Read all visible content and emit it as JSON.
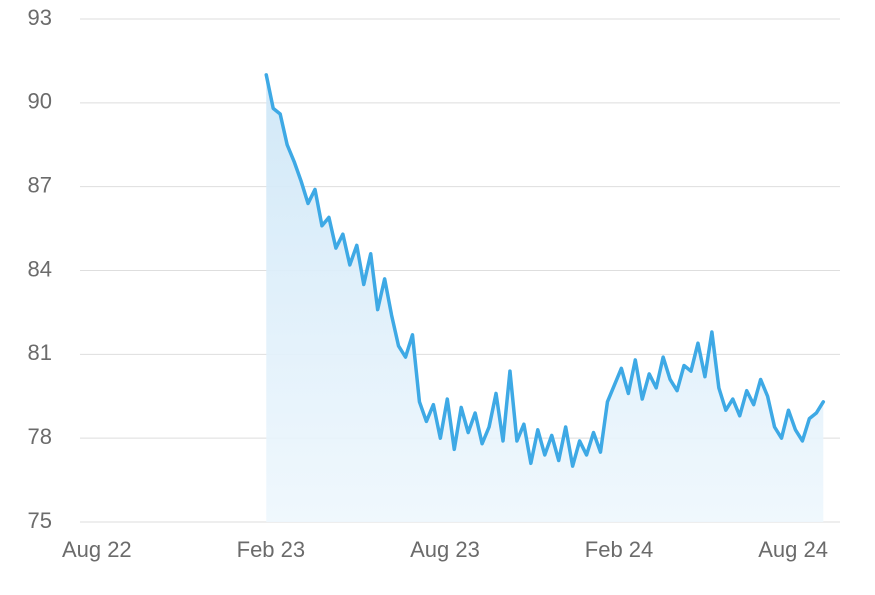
{
  "chart_data": {
    "type": "line",
    "color": "#3ea9e5",
    "grid": true,
    "area": true,
    "xlim": [
      2022.535,
      2024.718
    ],
    "ylim": [
      75,
      93
    ],
    "yticks": [
      75,
      78,
      81,
      84,
      87,
      90,
      93
    ],
    "xticks": [
      {
        "value": 2022.5833,
        "label": "Aug 22"
      },
      {
        "value": 2023.0833,
        "label": "Feb 23"
      },
      {
        "value": 2023.5833,
        "label": "Aug 23"
      },
      {
        "value": 2024.0833,
        "label": "Feb 24"
      },
      {
        "value": 2024.5833,
        "label": "Aug 24"
      }
    ],
    "x": [
      2023.07,
      2023.09,
      2023.11,
      2023.13,
      2023.15,
      2023.17,
      2023.19,
      2023.21,
      2023.23,
      2023.25,
      2023.27,
      2023.29,
      2023.31,
      2023.33,
      2023.35,
      2023.37,
      2023.39,
      2023.41,
      2023.43,
      2023.45,
      2023.47,
      2023.49,
      2023.51,
      2023.53,
      2023.55,
      2023.57,
      2023.59,
      2023.61,
      2023.63,
      2023.65,
      2023.67,
      2023.69,
      2023.71,
      2023.73,
      2023.75,
      2023.77,
      2023.79,
      2023.81,
      2023.83,
      2023.85,
      2023.87,
      2023.89,
      2023.91,
      2023.93,
      2023.95,
      2023.97,
      2023.99,
      2024.01,
      2024.03,
      2024.05,
      2024.07,
      2024.09,
      2024.11,
      2024.13,
      2024.15,
      2024.17,
      2024.19,
      2024.21,
      2024.23,
      2024.25,
      2024.27,
      2024.29,
      2024.31,
      2024.33,
      2024.35,
      2024.37,
      2024.39,
      2024.41,
      2024.43,
      2024.45,
      2024.47,
      2024.49,
      2024.51,
      2024.53,
      2024.55,
      2024.57,
      2024.59,
      2024.61,
      2024.63,
      2024.65,
      2024.67
    ],
    "values": [
      91.0,
      89.8,
      89.6,
      88.5,
      87.9,
      87.2,
      86.4,
      86.9,
      85.6,
      85.9,
      84.8,
      85.3,
      84.2,
      84.9,
      83.5,
      84.6,
      82.6,
      83.7,
      82.4,
      81.3,
      80.9,
      81.7,
      79.3,
      78.6,
      79.2,
      78.0,
      79.4,
      77.6,
      79.1,
      78.2,
      78.9,
      77.8,
      78.4,
      79.6,
      77.9,
      80.4,
      77.9,
      78.5,
      77.1,
      78.3,
      77.4,
      78.1,
      77.2,
      78.4,
      77.0,
      77.9,
      77.4,
      78.2,
      77.5,
      79.3,
      79.9,
      80.5,
      79.6,
      80.8,
      79.4,
      80.3,
      79.8,
      80.9,
      80.1,
      79.7,
      80.6,
      80.4,
      81.4,
      80.2,
      81.8,
      79.8,
      79.0,
      79.4,
      78.8,
      79.7,
      79.2,
      80.1,
      79.5,
      78.4,
      78.0,
      79.0,
      78.3,
      77.9,
      78.7,
      78.9,
      79.3
    ]
  }
}
